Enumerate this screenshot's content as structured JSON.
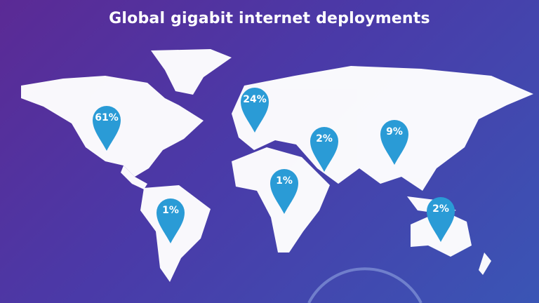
{
  "title": "Global gigabit internet deployments",
  "colors": {
    "pin": "#2a9bd6",
    "land": "#ffffff",
    "background_start": "#5b2a95",
    "background_end": "#3a55b5"
  },
  "regions": [
    {
      "region": "North America",
      "value": "61%"
    },
    {
      "region": "Europe",
      "value": "24%"
    },
    {
      "region": "Middle East",
      "value": "2%"
    },
    {
      "region": "Asia",
      "value": "9%"
    },
    {
      "region": "Africa",
      "value": "1%"
    },
    {
      "region": "South America",
      "value": "1%"
    },
    {
      "region": "Oceania",
      "value": "2%"
    }
  ]
}
